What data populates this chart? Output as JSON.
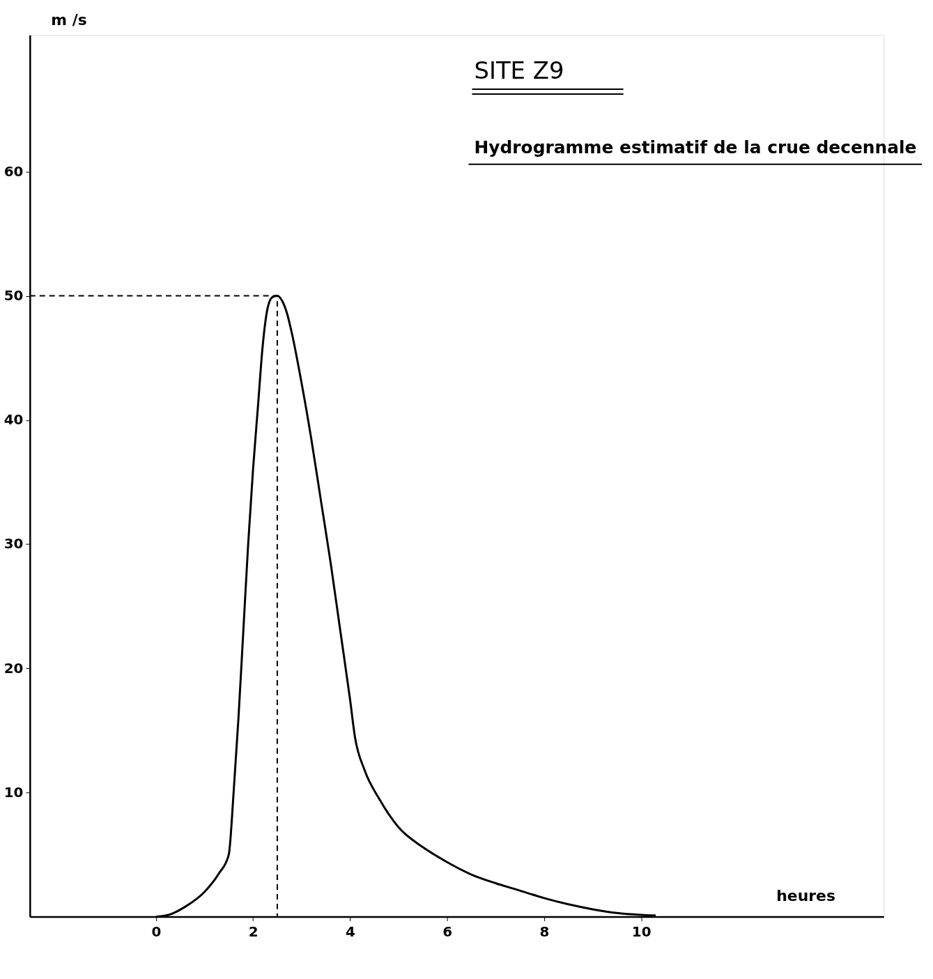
{
  "chart_data": {
    "type": "line",
    "title": "SITE Z9",
    "subtitle": "Hydrogramme estimatif de la crue decennale",
    "xlabel": "heures",
    "ylabel": "m /s",
    "xlim": [
      -2.6,
      15
    ],
    "ylim": [
      0,
      71
    ],
    "xticks": [
      0,
      2,
      4,
      6,
      8,
      10
    ],
    "yticks": [
      10,
      20,
      30,
      40,
      50,
      60
    ],
    "grid": false,
    "series": [
      {
        "color": "#000000",
        "line_style": "solid",
        "x": [
          0,
          0.3,
          0.6,
          1.0,
          1.3,
          1.5,
          1.6,
          1.7,
          1.8,
          1.9,
          2.0,
          2.1,
          2.2,
          2.3,
          2.4,
          2.5,
          2.6,
          2.7,
          2.8,
          3.0,
          3.2,
          3.4,
          3.6,
          3.8,
          4.0,
          4.1,
          4.3,
          4.6,
          5.0,
          5.5,
          6.0,
          6.5,
          7.0,
          7.5,
          8.0,
          8.5,
          9.0,
          9.5,
          10.0,
          10.3
        ],
        "values": [
          0,
          0.2,
          0.8,
          2.0,
          3.5,
          5.0,
          10.0,
          16.0,
          23.0,
          30.0,
          36.0,
          41.0,
          46.0,
          49.0,
          49.9,
          50.0,
          49.6,
          48.6,
          47.0,
          43.0,
          38.5,
          33.5,
          28.5,
          23.0,
          17.5,
          14.5,
          11.8,
          9.5,
          7.2,
          5.6,
          4.4,
          3.4,
          2.7,
          2.1,
          1.5,
          1.0,
          0.6,
          0.3,
          0.15,
          0.1
        ]
      },
      {
        "color": "#000000",
        "line_style": "dashed",
        "x": [
          -2.6,
          2.5,
          2.5
        ],
        "values": [
          50,
          50,
          0
        ]
      }
    ]
  }
}
